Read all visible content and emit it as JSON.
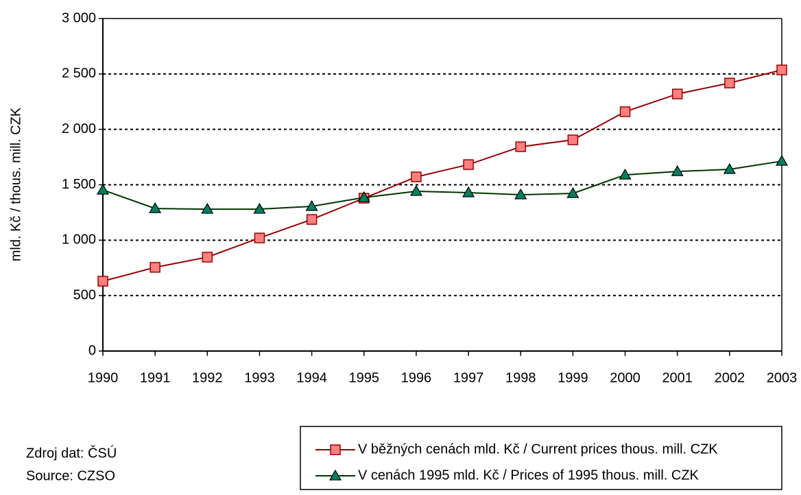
{
  "chart_data": {
    "type": "line",
    "y_label": "mld. Kč / thous. mill. CZK",
    "categories": [
      "1990",
      "1991",
      "1992",
      "1993",
      "1994",
      "1995",
      "1996",
      "1997",
      "1998",
      "1999",
      "2000",
      "2001",
      "2002",
      "2003"
    ],
    "series": [
      {
        "name": "V běžných cenách mld. Kč / Current prices thous. mill. CZK",
        "color": "#990000",
        "marker": "square",
        "marker_fill": "#ff8080",
        "values": [
          630,
          755,
          847,
          1020,
          1187,
          1379,
          1571,
          1682,
          1843,
          1905,
          2159,
          2319,
          2418,
          2536
        ]
      },
      {
        "name": "V cenách 1995 mld. Kč / Prices of 1995 thous. mill. CZK",
        "color": "#003300",
        "marker": "triangle",
        "marker_fill": "#008060",
        "values": [
          1453,
          1286,
          1280,
          1280,
          1305,
          1385,
          1441,
          1429,
          1410,
          1422,
          1589,
          1620,
          1639,
          1713
        ]
      }
    ],
    "ylim": [
      0,
      3000
    ],
    "yticks": [
      0,
      500,
      {
        "value": 1000,
        "label": "1 000"
      },
      {
        "value": 1500,
        "label": "1 500"
      },
      {
        "value": 2000,
        "label": "2 000"
      },
      {
        "value": 2500,
        "label": "2 500"
      },
      {
        "value": 3000,
        "label": "3 000"
      }
    ],
    "grid": true,
    "legend": "bottom-right",
    "source_notes": [
      "Zdroj dat: ČSÚ",
      "Source: CZSO"
    ]
  }
}
